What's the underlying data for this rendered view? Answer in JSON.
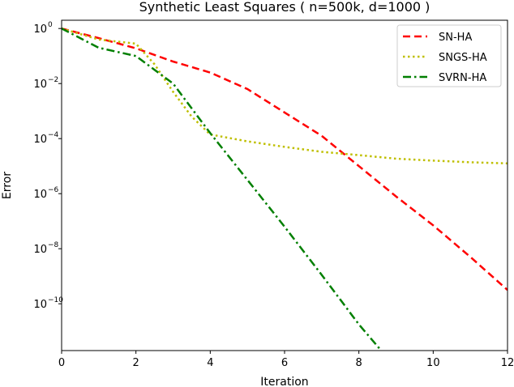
{
  "chart_data": {
    "type": "line",
    "title": "Synthetic Least Squares ( n=500k, d=1000 )",
    "xlabel": "Iteration",
    "ylabel": "Error",
    "xlim": [
      0,
      12
    ],
    "ylim_log10": [
      -11.7,
      0.3
    ],
    "yscale": "log",
    "grid": false,
    "legend_position": "top-right",
    "x_ticks": [
      "0",
      "2",
      "4",
      "6",
      "8",
      "10",
      "12"
    ],
    "y_ticks": [
      {
        "base": "10",
        "exp": "0"
      },
      {
        "base": "10",
        "exp": "−2"
      },
      {
        "base": "10",
        "exp": "−4"
      },
      {
        "base": "10",
        "exp": "−6"
      },
      {
        "base": "10",
        "exp": "−8"
      },
      {
        "base": "10",
        "exp": "−10"
      }
    ],
    "series": [
      {
        "name": "SN-HA",
        "color": "#ff0000",
        "dash": "dashed",
        "points": [
          [
            0,
            0
          ],
          [
            1,
            -0.35
          ],
          [
            2,
            -0.72
          ],
          [
            3,
            -1.2
          ],
          [
            4,
            -1.6
          ],
          [
            5,
            -2.2
          ],
          [
            6,
            -3.05
          ],
          [
            7,
            -3.9
          ],
          [
            8,
            -5.0
          ],
          [
            9,
            -6.1
          ],
          [
            10,
            -7.15
          ],
          [
            11,
            -8.3
          ],
          [
            12,
            -9.5
          ]
        ]
      },
      {
        "name": "SNGS-HA",
        "color": "#bfbf00",
        "dash": "dotted",
        "points": [
          [
            0,
            0
          ],
          [
            1,
            -0.4
          ],
          [
            2,
            -0.55
          ],
          [
            2.5,
            -1.3
          ],
          [
            3,
            -2.3
          ],
          [
            3.5,
            -3.2
          ],
          [
            4,
            -3.85
          ],
          [
            5,
            -4.1
          ],
          [
            6,
            -4.3
          ],
          [
            7,
            -4.48
          ],
          [
            8,
            -4.6
          ],
          [
            9,
            -4.73
          ],
          [
            10,
            -4.8
          ],
          [
            11,
            -4.86
          ],
          [
            12,
            -4.9
          ]
        ]
      },
      {
        "name": "SVRN-HA",
        "color": "#007f00",
        "dash": "dashdot",
        "points": [
          [
            0,
            0
          ],
          [
            1,
            -0.7
          ],
          [
            2,
            -1.0
          ],
          [
            3,
            -2.0
          ],
          [
            4,
            -3.8
          ],
          [
            5,
            -5.5
          ],
          [
            6,
            -7.2
          ],
          [
            7,
            -8.95
          ],
          [
            8,
            -10.75
          ],
          [
            8.6,
            -11.7
          ]
        ]
      }
    ]
  }
}
